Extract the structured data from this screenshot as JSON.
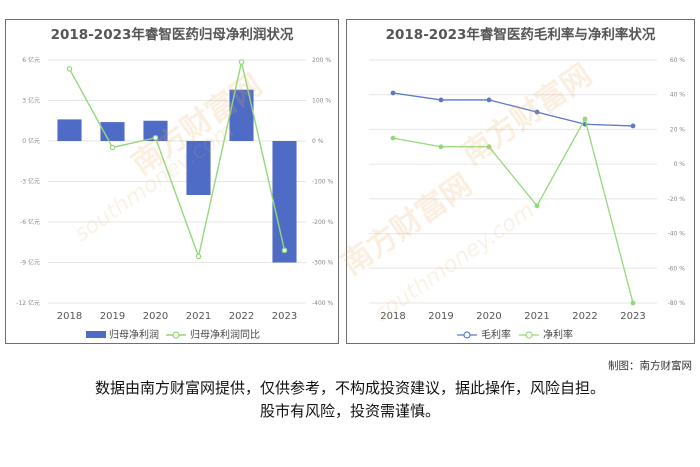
{
  "watermark": {
    "text": "南方财富网",
    "url_text": "southmoney.com"
  },
  "credit": "制图：南方财富网",
  "disclaimer": {
    "line1": "数据由南方财富网提供，仅供参考，不构成投资建议，据此操作，风险自担。",
    "line2": "股市有风险，投资需谨慎。"
  },
  "colors": {
    "bar": "#4e6bc6",
    "growth_line": "#93d97a",
    "gross_line": "#5b79c9",
    "net_line": "#93d97a"
  },
  "chart_data": [
    {
      "type": "bar",
      "title": "2018-2023年睿智医药归母净利润状况",
      "categories": [
        "2018",
        "2019",
        "2020",
        "2021",
        "2022",
        "2023"
      ],
      "series": [
        {
          "name": "归母净利润",
          "type": "bar",
          "axis": "left",
          "values": [
            1.6,
            1.4,
            1.5,
            -4.0,
            3.8,
            -9.0
          ]
        },
        {
          "name": "归母净利润同比",
          "type": "line",
          "axis": "right",
          "values": [
            178,
            -16,
            8,
            -285,
            195,
            -270
          ]
        }
      ],
      "yleft": {
        "ticks": [
          6,
          3,
          0,
          -3,
          -6,
          -9,
          -12
        ],
        "labels": [
          "6 亿元",
          "3 亿元",
          "0 亿元",
          "-3 亿元",
          "-6 亿元",
          "-9 亿元",
          "-12 亿元"
        ],
        "ylim": [
          -12,
          6
        ]
      },
      "yright": {
        "ticks": [
          200,
          100,
          0,
          -100,
          -200,
          -300,
          -400
        ],
        "labels": [
          "200 %",
          "100 %",
          "0 %",
          "-100 %",
          "-200 %",
          "-300 %",
          "-400 %"
        ],
        "ylim": [
          -400,
          200
        ]
      },
      "legend": "bottom"
    },
    {
      "type": "line",
      "title": "2018-2023年睿智医药毛利率与净利率状况",
      "categories": [
        "2018",
        "2019",
        "2020",
        "2021",
        "2022",
        "2023"
      ],
      "series": [
        {
          "name": "毛利率",
          "values": [
            41,
            37,
            37,
            30,
            23,
            22
          ]
        },
        {
          "name": "净利率",
          "values": [
            15,
            10,
            10,
            -24,
            26,
            -80
          ]
        }
      ],
      "yright": {
        "ticks": [
          60,
          40,
          20,
          0,
          -20,
          -40,
          -60,
          -80
        ],
        "labels": [
          "60 %",
          "40 %",
          "20 %",
          "0 %",
          "-20 %",
          "-40 %",
          "-60 %",
          "-80 %"
        ],
        "ylim": [
          -80,
          60
        ]
      },
      "legend": "bottom"
    }
  ]
}
